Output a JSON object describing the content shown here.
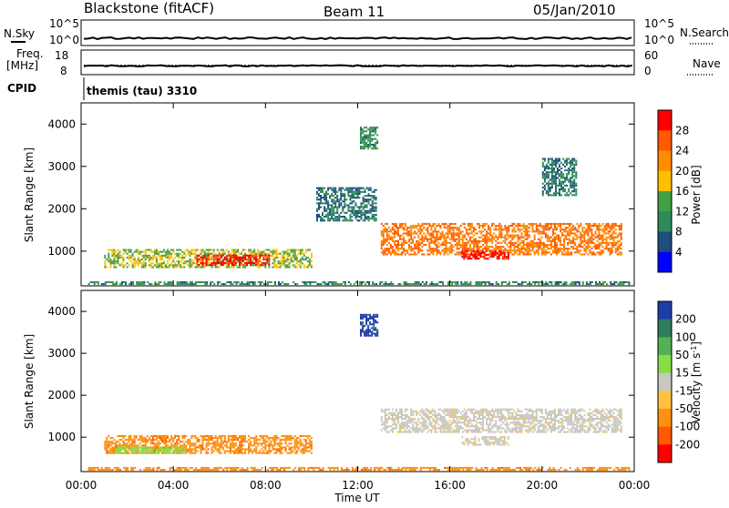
{
  "header": {
    "station": "Blackstone (fitACF)",
    "beam": "Beam 11",
    "date": "05/Jan/2010"
  },
  "top_panels": {
    "nsky_label": "N.Sky",
    "nsky_ticks": [
      "10^5",
      "10^0"
    ],
    "nsearch_label": "N.Search",
    "nsearch_ticks": [
      "10^5",
      "10^0"
    ],
    "freq_label_line1": "Freq.",
    "freq_label_line2": "[MHz]",
    "freq_ticks": [
      "18",
      "8"
    ],
    "nave_label": "Nave",
    "nave_ticks": [
      "60",
      "0"
    ],
    "cpid_label": "CPID",
    "cpid_value": "themis (tau) 3310"
  },
  "x_axis": {
    "label": "Time UT",
    "ticks": [
      "00:00",
      "04:00",
      "08:00",
      "12:00",
      "16:00",
      "20:00",
      "00:00"
    ]
  },
  "colorbars": {
    "power": {
      "label": "Power [dB]",
      "ticks": [
        "28",
        "24",
        "20",
        "16",
        "12",
        "8",
        "4"
      ],
      "colors": [
        "#ff0000",
        "#ff5a00",
        "#ff8c00",
        "#ffc000",
        "#44a044",
        "#2e8b57",
        "#1e4d7e",
        "#0000ff"
      ]
    },
    "velocity": {
      "label_main": "Velocity [m s",
      "label_sup": "-1",
      "label_end": "]",
      "ticks": [
        "200",
        "100",
        "50",
        "15",
        "-15",
        "-50",
        "-100",
        "-200"
      ],
      "colors": [
        "#1e3ca8",
        "#2e7d5e",
        "#55b055",
        "#88dd44",
        "#c8c8c0",
        "#ffc040",
        "#ff9010",
        "#ff5a00",
        "#ff0000"
      ]
    }
  },
  "chart_data": [
    {
      "type": "heatmap",
      "title": "Power",
      "xlabel": "Time UT",
      "ylabel": "Slant Range [km]",
      "xlim": [
        0,
        24
      ],
      "ylim": [
        180,
        4500
      ],
      "y_ticks": [
        1000,
        2000,
        3000,
        4000
      ],
      "colorbar": "Power [dB]",
      "features": [
        {
          "region": "near-range ground band",
          "t": [
            0.3,
            23.8
          ],
          "range": [
            200,
            280
          ],
          "power_db": 8
        },
        {
          "region": "morning E/F band",
          "t": [
            1.0,
            10.0
          ],
          "range": [
            600,
            1050
          ],
          "power_db": 14
        },
        {
          "region": "morning peak",
          "t": [
            5.0,
            8.2
          ],
          "range": [
            650,
            900
          ],
          "power_db": 28
        },
        {
          "region": "noon patches",
          "t": [
            10.2,
            12.8
          ],
          "range": [
            1700,
            2500
          ],
          "power_db": 6
        },
        {
          "region": "high-range patch",
          "t": [
            12.1,
            12.9
          ],
          "range": [
            3400,
            3900
          ],
          "power_db": 8
        },
        {
          "region": "afternoon band",
          "t": [
            13.0,
            23.4
          ],
          "range": [
            900,
            1650
          ],
          "power_db": 22
        },
        {
          "region": "afternoon peak",
          "t": [
            16.5,
            18.5
          ],
          "range": [
            800,
            1000
          ],
          "power_db": 28
        },
        {
          "region": "evening echoes",
          "t": [
            20.0,
            21.5
          ],
          "range": [
            2300,
            3200
          ],
          "power_db": 6
        }
      ]
    },
    {
      "type": "heatmap",
      "title": "Velocity",
      "xlabel": "Time UT",
      "ylabel": "Slant Range [km]",
      "xlim": [
        0,
        24
      ],
      "ylim": [
        180,
        4500
      ],
      "y_ticks": [
        1000,
        2000,
        3000,
        4000
      ],
      "colorbar": "Velocity [m s-1]",
      "features": [
        {
          "region": "near-range band",
          "t": [
            0.3,
            23.8
          ],
          "range": [
            200,
            280
          ],
          "velocity": -50
        },
        {
          "region": "morning band",
          "t": [
            1.0,
            10.0
          ],
          "range": [
            600,
            1050
          ],
          "velocity": -50
        },
        {
          "region": "early morning",
          "t": [
            1.5,
            4.5
          ],
          "range": [
            600,
            750
          ],
          "velocity": 30
        },
        {
          "region": "high-range patch",
          "t": [
            12.1,
            12.9
          ],
          "range": [
            3400,
            3900
          ],
          "velocity": 200
        },
        {
          "region": "afternoon band",
          "t": [
            13.0,
            23.4
          ],
          "range": [
            1100,
            1650
          ],
          "velocity": 0
        },
        {
          "region": "afternoon low",
          "t": [
            16.5,
            18.5
          ],
          "range": [
            800,
            1000
          ],
          "velocity": 0
        }
      ]
    }
  ]
}
